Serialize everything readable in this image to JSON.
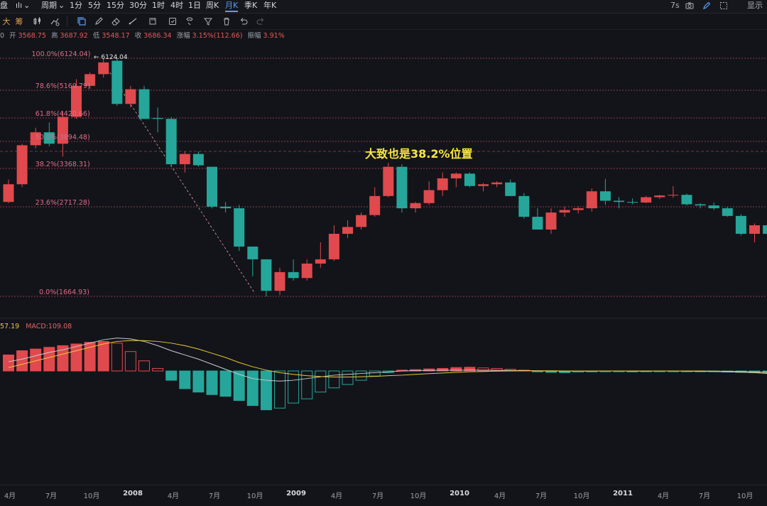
{
  "toolbar": {
    "items": [
      "盘",
      "ılı",
      "周期",
      "1分",
      "5分",
      "15分",
      "30分",
      "1时",
      "4时",
      "1日",
      "周K",
      "月K",
      "季K",
      "年K"
    ],
    "active": "月K",
    "right": {
      "refresh": "7s",
      "display": "显示"
    }
  },
  "drawbar": {
    "items": [
      "大",
      "筹"
    ]
  },
  "ohlc": {
    "prefix": "0",
    "open_label": "开",
    "open": "3568.75",
    "high_label": "高",
    "high": "3687.92",
    "low_label": "低",
    "low": "3548.17",
    "close_label": "收",
    "close": "3686.34",
    "change_label": "涨幅",
    "change": "3.15%(112.66)",
    "amp_label": "振幅",
    "amp": "3.91%"
  },
  "macd_legend": {
    "dif": "57.19",
    "macd": "MACD:109.08"
  },
  "annotation": "大致也是38.2%位置",
  "high_marker": "← 6124.04",
  "chart_data": {
    "type": "candlestick",
    "fib_levels": [
      {
        "label": "100.0%(6124.04)",
        "price": 6124.04
      },
      {
        "label": "78.6%(5169.79)",
        "price": 5169.79
      },
      {
        "label": "61.8%(4420.66)",
        "price": 4420.66
      },
      {
        "label": "50.0%(3894.48)",
        "price": 3894.48
      },
      {
        "label": "38.2%(3368.31)",
        "price": 3368.31
      },
      {
        "label": "23.6%(2717.28)",
        "price": 2717.28
      },
      {
        "label": "0.0%(1664.93)",
        "price": 1664.93
      }
    ],
    "x_labels": [
      "4月",
      "7月",
      "10月",
      "2008",
      "4月",
      "7月",
      "10月",
      "2009",
      "4月",
      "7月",
      "10月",
      "2010",
      "4月",
      "7月",
      "10月",
      "2011",
      "4月",
      "7月",
      "10月"
    ],
    "year_labels": [
      "2008",
      "2009",
      "2010",
      "2011"
    ],
    "candles": [
      {
        "o": 2800,
        "h": 3180,
        "l": 2780,
        "c": 3100
      },
      {
        "o": 3100,
        "h": 3850,
        "l": 3050,
        "c": 3820
      },
      {
        "o": 3820,
        "h": 4200,
        "l": 3760,
        "c": 4100
      },
      {
        "o": 4100,
        "h": 4320,
        "l": 3800,
        "c": 3850
      },
      {
        "o": 3850,
        "h": 4600,
        "l": 3600,
        "c": 4450
      },
      {
        "o": 4450,
        "h": 5500,
        "l": 4400,
        "c": 5300
      },
      {
        "o": 5300,
        "h": 5700,
        "l": 5200,
        "c": 5650
      },
      {
        "o": 5650,
        "h": 6124,
        "l": 5550,
        "c": 6000
      },
      {
        "o": 6050,
        "h": 6124,
        "l": 4750,
        "c": 4800
      },
      {
        "o": 4800,
        "h": 5300,
        "l": 4700,
        "c": 5200
      },
      {
        "o": 5200,
        "h": 5300,
        "l": 4400,
        "c": 4400
      },
      {
        "o": 4420,
        "h": 4700,
        "l": 4100,
        "c": 4400
      },
      {
        "o": 4400,
        "h": 4450,
        "l": 3400,
        "c": 3450
      },
      {
        "o": 3450,
        "h": 3700,
        "l": 3300,
        "c": 3650
      },
      {
        "o": 3650,
        "h": 3700,
        "l": 3400,
        "c": 3430
      },
      {
        "o": 3400,
        "h": 3400,
        "l": 2700,
        "c": 2720
      },
      {
        "o": 2720,
        "h": 2800,
        "l": 2650,
        "c": 2700
      },
      {
        "o": 2700,
        "h": 2750,
        "l": 2200,
        "c": 2250
      },
      {
        "o": 2250,
        "h": 2250,
        "l": 1900,
        "c": 2100
      },
      {
        "o": 2100,
        "h": 2100,
        "l": 1664.93,
        "c": 1730
      },
      {
        "o": 1730,
        "h": 2000,
        "l": 1680,
        "c": 1950
      },
      {
        "o": 1950,
        "h": 2100,
        "l": 1850,
        "c": 1880
      },
      {
        "o": 1880,
        "h": 2100,
        "l": 1850,
        "c": 2050
      },
      {
        "o": 2050,
        "h": 2300,
        "l": 2000,
        "c": 2100
      },
      {
        "o": 2100,
        "h": 2500,
        "l": 2080,
        "c": 2400
      },
      {
        "o": 2400,
        "h": 2560,
        "l": 2350,
        "c": 2480
      },
      {
        "o": 2480,
        "h": 2650,
        "l": 2450,
        "c": 2620
      },
      {
        "o": 2620,
        "h": 3050,
        "l": 2600,
        "c": 2900
      },
      {
        "o": 2900,
        "h": 3478,
        "l": 2880,
        "c": 3400
      },
      {
        "o": 3400,
        "h": 3450,
        "l": 2650,
        "c": 2700
      },
      {
        "o": 2700,
        "h": 2800,
        "l": 2650,
        "c": 2780
      },
      {
        "o": 2780,
        "h": 3150,
        "l": 2750,
        "c": 3000
      },
      {
        "o": 3000,
        "h": 3300,
        "l": 2900,
        "c": 3200
      },
      {
        "o": 3200,
        "h": 3300,
        "l": 3050,
        "c": 3280
      },
      {
        "o": 3280,
        "h": 3300,
        "l": 3050,
        "c": 3070
      },
      {
        "o": 3070,
        "h": 3120,
        "l": 2980,
        "c": 3100
      },
      {
        "o": 3100,
        "h": 3150,
        "l": 3050,
        "c": 3130
      },
      {
        "o": 3130,
        "h": 3180,
        "l": 2900,
        "c": 2900
      },
      {
        "o": 2900,
        "h": 2950,
        "l": 2580,
        "c": 2600
      },
      {
        "o": 2600,
        "h": 2700,
        "l": 2450,
        "c": 2450
      },
      {
        "o": 2450,
        "h": 2700,
        "l": 2400,
        "c": 2650
      },
      {
        "o": 2650,
        "h": 2720,
        "l": 2600,
        "c": 2680
      },
      {
        "o": 2680,
        "h": 2720,
        "l": 2640,
        "c": 2700
      },
      {
        "o": 2700,
        "h": 3030,
        "l": 2660,
        "c": 2980
      },
      {
        "o": 2980,
        "h": 3190,
        "l": 2750,
        "c": 2820
      },
      {
        "o": 2820,
        "h": 2880,
        "l": 2700,
        "c": 2800
      },
      {
        "o": 2800,
        "h": 2860,
        "l": 2760,
        "c": 2790
      },
      {
        "o": 2790,
        "h": 2900,
        "l": 2780,
        "c": 2880
      },
      {
        "o": 2880,
        "h": 2920,
        "l": 2850,
        "c": 2910
      },
      {
        "o": 2910,
        "h": 3067,
        "l": 2870,
        "c": 2920
      },
      {
        "o": 2920,
        "h": 2940,
        "l": 2740,
        "c": 2760
      },
      {
        "o": 2760,
        "h": 2780,
        "l": 2700,
        "c": 2740
      },
      {
        "o": 2740,
        "h": 2790,
        "l": 2680,
        "c": 2700
      },
      {
        "o": 2700,
        "h": 2720,
        "l": 2600,
        "c": 2610
      },
      {
        "o": 2610,
        "h": 2630,
        "l": 2380,
        "c": 2400
      },
      {
        "o": 2400,
        "h": 2520,
        "l": 2300,
        "c": 2500
      },
      {
        "o": 2500,
        "h": 2560,
        "l": 2380,
        "c": 2400
      }
    ],
    "macd_hist": [
      95,
      120,
      130,
      140,
      150,
      160,
      170,
      175,
      165,
      115,
      60,
      15,
      -55,
      -105,
      -125,
      -140,
      -150,
      -175,
      -205,
      -230,
      -220,
      -190,
      -165,
      -125,
      -100,
      -80,
      -55,
      -30,
      -10,
      5,
      8,
      12,
      15,
      20,
      22,
      18,
      15,
      10,
      5,
      -5,
      -8,
      -10,
      -6,
      -5,
      -4,
      -3,
      -5,
      -4,
      -2,
      -2,
      -2,
      -3,
      -4,
      -6,
      -8,
      -10,
      -10
    ],
    "dif": [
      55,
      70,
      90,
      110,
      125,
      145,
      165,
      185,
      195,
      190,
      175,
      150,
      120,
      95,
      70,
      40,
      10,
      -20,
      -45,
      -55,
      -60,
      -55,
      -45,
      -35,
      -25,
      -20,
      -15,
      -10,
      -5,
      0,
      2,
      3,
      4,
      4,
      5,
      5,
      4,
      3,
      2,
      1,
      0,
      -1,
      -1,
      -1,
      0,
      0,
      -1,
      -1,
      0,
      0,
      -1,
      -2,
      -3,
      -5,
      -7,
      -10,
      -15
    ],
    "dea": [
      20,
      40,
      60,
      80,
      100,
      120,
      140,
      160,
      175,
      180,
      180,
      175,
      165,
      150,
      130,
      105,
      80,
      50,
      25,
      5,
      -10,
      -20,
      -28,
      -33,
      -36,
      -36,
      -34,
      -32,
      -28,
      -25,
      -20,
      -16,
      -12,
      -8,
      -5,
      -3,
      -1,
      0,
      1,
      1,
      1,
      0,
      0,
      0,
      0,
      0,
      0,
      0,
      0,
      0,
      0,
      0,
      -1,
      -2,
      -3,
      -5,
      -7
    ],
    "macd_range": [
      -240,
      240
    ]
  }
}
